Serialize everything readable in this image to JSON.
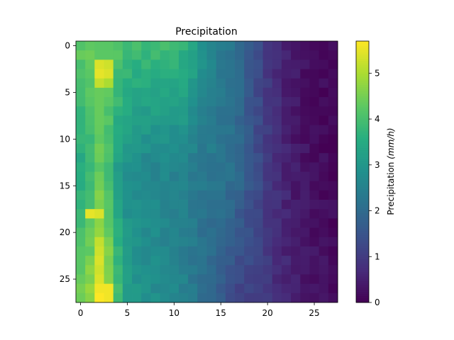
{
  "chart_data": {
    "type": "heatmap",
    "title": "Precipitation",
    "xlabel": "",
    "ylabel": "",
    "n_rows": 28,
    "n_cols": 28,
    "x_ticks": [
      0,
      5,
      10,
      15,
      20,
      25
    ],
    "y_ticks": [
      0,
      5,
      10,
      15,
      20,
      25
    ],
    "xlim": [
      -0.5,
      27.5
    ],
    "ylim": [
      27.5,
      -0.5
    ],
    "colormap": "viridis",
    "colorbar": {
      "label_prefix": "Precipitation ",
      "label_unit": "(mm/h)",
      "vmin": 0,
      "vmax": 5.7,
      "ticks": [
        0,
        1,
        2,
        3,
        4,
        5
      ]
    },
    "profile_cols": [
      0,
      1,
      2,
      3,
      4,
      5,
      6,
      7,
      8,
      9,
      10,
      11,
      12,
      13,
      14,
      15,
      16,
      17,
      18,
      19,
      20,
      21,
      22,
      23,
      24,
      25,
      26,
      27
    ],
    "profile_top": [
      4.3,
      4.4,
      4.4,
      4.3,
      4.2,
      4.0,
      3.9,
      3.9,
      3.9,
      3.9,
      3.8,
      3.7,
      3.4,
      2.9,
      2.6,
      2.4,
      2.2,
      1.9,
      1.6,
      1.3,
      1.0,
      0.7,
      0.5,
      0.35,
      0.25,
      0.2,
      0.15,
      0.1
    ],
    "profile_mid": [
      3.4,
      3.8,
      4.3,
      4.0,
      3.2,
      2.8,
      2.7,
      2.6,
      2.6,
      2.6,
      2.5,
      2.5,
      2.4,
      2.3,
      2.3,
      2.2,
      2.1,
      1.9,
      1.6,
      1.3,
      1.0,
      0.8,
      0.6,
      0.4,
      0.3,
      0.2,
      0.15,
      0.1
    ],
    "profile_bottom": [
      4.6,
      4.8,
      5.3,
      4.9,
      3.9,
      3.2,
      3.0,
      2.9,
      2.8,
      2.7,
      2.6,
      2.5,
      2.3,
      2.1,
      1.9,
      1.6,
      1.4,
      1.2,
      1.1,
      1.0,
      0.9,
      0.7,
      0.6,
      0.5,
      0.4,
      0.3,
      0.25,
      0.2
    ],
    "bright_cells": [
      {
        "row": 2,
        "col": 2,
        "value": 5.4
      },
      {
        "row": 2,
        "col": 3,
        "value": 5.3
      },
      {
        "row": 3,
        "col": 2,
        "value": 5.5
      },
      {
        "row": 3,
        "col": 3,
        "value": 5.4
      },
      {
        "row": 4,
        "col": 2,
        "value": 5.2
      },
      {
        "row": 4,
        "col": 3,
        "value": 5.0
      },
      {
        "row": 18,
        "col": 1,
        "value": 5.5
      },
      {
        "row": 18,
        "col": 2,
        "value": 5.4
      },
      {
        "row": 21,
        "col": 2,
        "value": 5.2
      },
      {
        "row": 22,
        "col": 2,
        "value": 5.3
      },
      {
        "row": 23,
        "col": 2,
        "value": 5.4
      },
      {
        "row": 24,
        "col": 2,
        "value": 5.3
      },
      {
        "row": 25,
        "col": 2,
        "value": 5.4
      },
      {
        "row": 26,
        "col": 2,
        "value": 5.6
      },
      {
        "row": 26,
        "col": 3,
        "value": 5.6
      },
      {
        "row": 27,
        "col": 2,
        "value": 5.7
      },
      {
        "row": 27,
        "col": 3,
        "value": 5.6
      }
    ]
  }
}
